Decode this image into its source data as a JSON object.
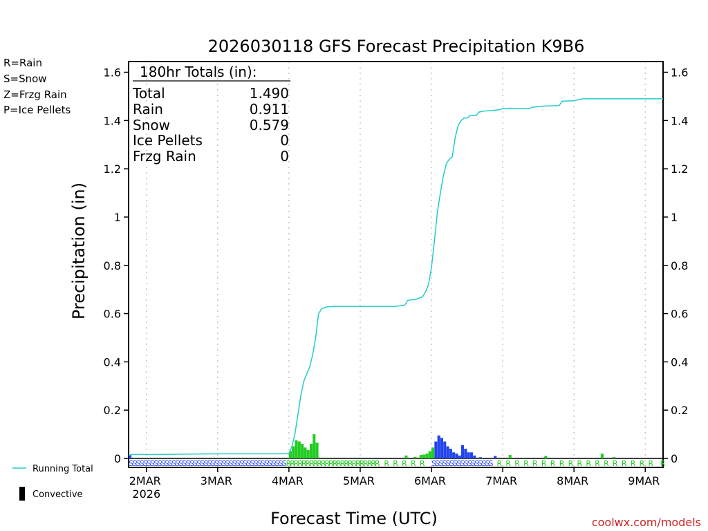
{
  "colors": {
    "rain": "#22cc22",
    "snow": "#2244ee",
    "frzg_rain": "#ee8833",
    "ice_pellets": "#ee2288",
    "running_total": "#22cccc",
    "convective": "#000000",
    "credit": "#cc2222"
  },
  "legend_left": {
    "rain": "R=Rain",
    "snow": "S=Snow",
    "frzg": "Z=Frzg Rain",
    "ice": "P=Ice Pellets"
  },
  "legend_bottom": {
    "running_total": "Running Total",
    "convective": "Convective"
  },
  "totals_box": {
    "header": "180hr Totals (in):",
    "rows": [
      {
        "label": "Total",
        "value": "1.490"
      },
      {
        "label": "Rain",
        "value": "0.911"
      },
      {
        "label": "Snow",
        "value": "0.579"
      },
      {
        "label": "Ice Pellets",
        "value": "0"
      },
      {
        "label": "Frzg Rain",
        "value": "0"
      }
    ]
  },
  "credit": "coolwx.com/models",
  "chart_data": {
    "type": "bar",
    "title": "2026030118 GFS Forecast Precipitation K9B6",
    "xlabel": "Forecast Time (UTC)",
    "ylabel": "Precipitation (in)",
    "ylim": [
      0,
      1.65
    ],
    "yticks": [
      "0",
      "0.2",
      "0.4",
      "0.6",
      "0.8",
      "1",
      "1.2",
      "1.4",
      "1.6"
    ],
    "ytick_values": [
      0,
      0.2,
      0.4,
      0.6,
      0.8,
      1.0,
      1.2,
      1.4,
      1.6
    ],
    "xlim_hours": [
      0,
      180
    ],
    "xticks": [
      {
        "label": "2MAR",
        "sub": "2026",
        "hour": 6
      },
      {
        "label": "3MAR",
        "sub": "",
        "hour": 30
      },
      {
        "label": "4MAR",
        "sub": "",
        "hour": 54
      },
      {
        "label": "5MAR",
        "sub": "",
        "hour": 78
      },
      {
        "label": "6MAR",
        "sub": "",
        "hour": 102
      },
      {
        "label": "7MAR",
        "sub": "",
        "hour": 126
      },
      {
        "label": "8MAR",
        "sub": "",
        "hour": 150
      },
      {
        "label": "9MAR",
        "sub": "",
        "hour": 174
      }
    ],
    "series": [
      {
        "name": "Running Total",
        "type": "line",
        "hours": [
          0,
          1,
          10,
          20,
          30,
          40,
          52,
          54,
          55,
          56,
          57,
          58,
          59,
          60,
          61,
          62,
          63,
          64,
          65,
          66,
          67,
          70,
          75,
          80,
          90,
          93,
          94,
          97,
          99,
          100,
          101,
          102,
          103,
          104,
          105,
          106,
          107,
          108,
          109,
          110,
          111,
          112,
          113,
          114,
          115,
          116,
          117,
          118,
          120,
          121,
          125,
          126,
          130,
          135,
          136,
          140,
          145,
          146,
          150,
          151,
          152,
          153,
          154,
          160,
          180
        ],
        "values": [
          0.013,
          0.016,
          0.016,
          0.018,
          0.019,
          0.019,
          0.019,
          0.02,
          0.05,
          0.1,
          0.18,
          0.26,
          0.32,
          0.35,
          0.38,
          0.43,
          0.5,
          0.6,
          0.62,
          0.625,
          0.628,
          0.63,
          0.63,
          0.63,
          0.63,
          0.635,
          0.655,
          0.66,
          0.67,
          0.69,
          0.72,
          0.79,
          0.9,
          1.02,
          1.1,
          1.17,
          1.22,
          1.24,
          1.25,
          1.33,
          1.38,
          1.4,
          1.41,
          1.41,
          1.42,
          1.42,
          1.42,
          1.435,
          1.44,
          1.44,
          1.445,
          1.45,
          1.45,
          1.45,
          1.455,
          1.46,
          1.462,
          1.48,
          1.482,
          1.485,
          1.488,
          1.49,
          1.49,
          1.49,
          1.49
        ]
      },
      {
        "name": "Rain",
        "type": "bar",
        "hours": [
          54,
          55,
          56,
          57,
          58,
          59,
          60,
          61,
          62,
          63,
          93,
          96,
          98,
          99,
          100,
          101,
          102,
          128,
          140,
          159,
          163
        ],
        "values": [
          0.03,
          0.05,
          0.075,
          0.07,
          0.06,
          0.045,
          0.035,
          0.06,
          0.1,
          0.065,
          0.012,
          0.006,
          0.014,
          0.016,
          0.02,
          0.03,
          0.045,
          0.014,
          0.01,
          0.02,
          0.006
        ]
      },
      {
        "name": "Snow",
        "type": "bar",
        "hours": [
          0,
          103,
          104,
          105,
          106,
          107,
          108,
          109,
          110,
          111,
          112,
          113,
          114,
          115,
          116,
          118,
          123
        ],
        "values": [
          0.013,
          0.07,
          0.095,
          0.085,
          0.07,
          0.05,
          0.04,
          0.025,
          0.02,
          0.012,
          0.055,
          0.04,
          0.025,
          0.025,
          0.012,
          0.005,
          0.01
        ]
      }
    ],
    "ptype_rows": [
      {
        "type": "S",
        "from": 0,
        "to": 52,
        "step": 1.2
      },
      {
        "type": "R",
        "from": 53,
        "to": 84,
        "step": 1.3
      },
      {
        "type": "R",
        "from": 86,
        "to": 100,
        "step": 3
      },
      {
        "type": "S",
        "from": 102,
        "to": 122,
        "step": 1.2
      },
      {
        "type": "R",
        "from": 124,
        "to": 176,
        "step": 3
      },
      {
        "type": "R",
        "from": 179,
        "to": 180,
        "step": 3
      }
    ]
  }
}
